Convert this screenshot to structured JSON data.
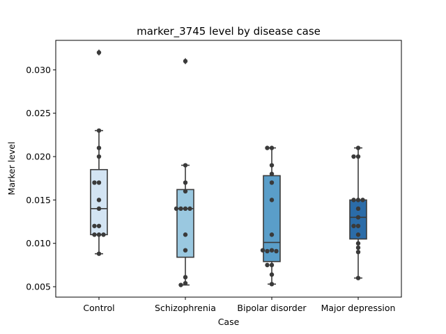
{
  "chart_data": {
    "type": "box",
    "title": "marker_3745 level by disease case",
    "xlabel": "Case",
    "ylabel": "Marker level",
    "ylim": [
      0.0038,
      0.0334
    ],
    "yticks": [
      0.005,
      0.01,
      0.015,
      0.02,
      0.025,
      0.03
    ],
    "ytick_labels": [
      "0.005",
      "0.010",
      "0.015",
      "0.020",
      "0.025",
      "0.030"
    ],
    "categories": [
      "Control",
      "Schizophrenia",
      "Bipolar disorder",
      "Major depression"
    ],
    "box_colors": [
      "#d3e4f3",
      "#9ac8e0",
      "#5a9ec9",
      "#2b6ca8"
    ],
    "boxes": [
      {
        "whisker_low": 0.0088,
        "q1": 0.011,
        "median": 0.014,
        "q3": 0.0185,
        "whisker_high": 0.023,
        "outliers": [
          0.032
        ]
      },
      {
        "whisker_low": 0.0052,
        "q1": 0.0084,
        "median": 0.014,
        "q3": 0.0162,
        "whisker_high": 0.019,
        "outliers": [
          0.031
        ]
      },
      {
        "whisker_low": 0.0053,
        "q1": 0.0079,
        "median": 0.0101,
        "q3": 0.0178,
        "whisker_high": 0.021,
        "outliers": []
      },
      {
        "whisker_low": 0.006,
        "q1": 0.0105,
        "median": 0.013,
        "q3": 0.015,
        "whisker_high": 0.021,
        "outliers": []
      }
    ],
    "points": [
      [
        0.032,
        0.023,
        0.021,
        0.02,
        0.017,
        0.017,
        0.015,
        0.014,
        0.012,
        0.012,
        0.011,
        0.011,
        0.011,
        0.0088
      ],
      [
        0.031,
        0.019,
        0.017,
        0.016,
        0.014,
        0.014,
        0.014,
        0.014,
        0.011,
        0.0092,
        0.0061,
        0.0054,
        0.0052
      ],
      [
        0.021,
        0.021,
        0.019,
        0.018,
        0.017,
        0.015,
        0.011,
        0.0092,
        0.0091,
        0.0091,
        0.0092,
        0.0075,
        0.0075,
        0.0064,
        0.0053
      ],
      [
        0.021,
        0.02,
        0.02,
        0.015,
        0.015,
        0.015,
        0.014,
        0.013,
        0.012,
        0.012,
        0.011,
        0.01,
        0.0095,
        0.009,
        0.006
      ]
    ]
  }
}
